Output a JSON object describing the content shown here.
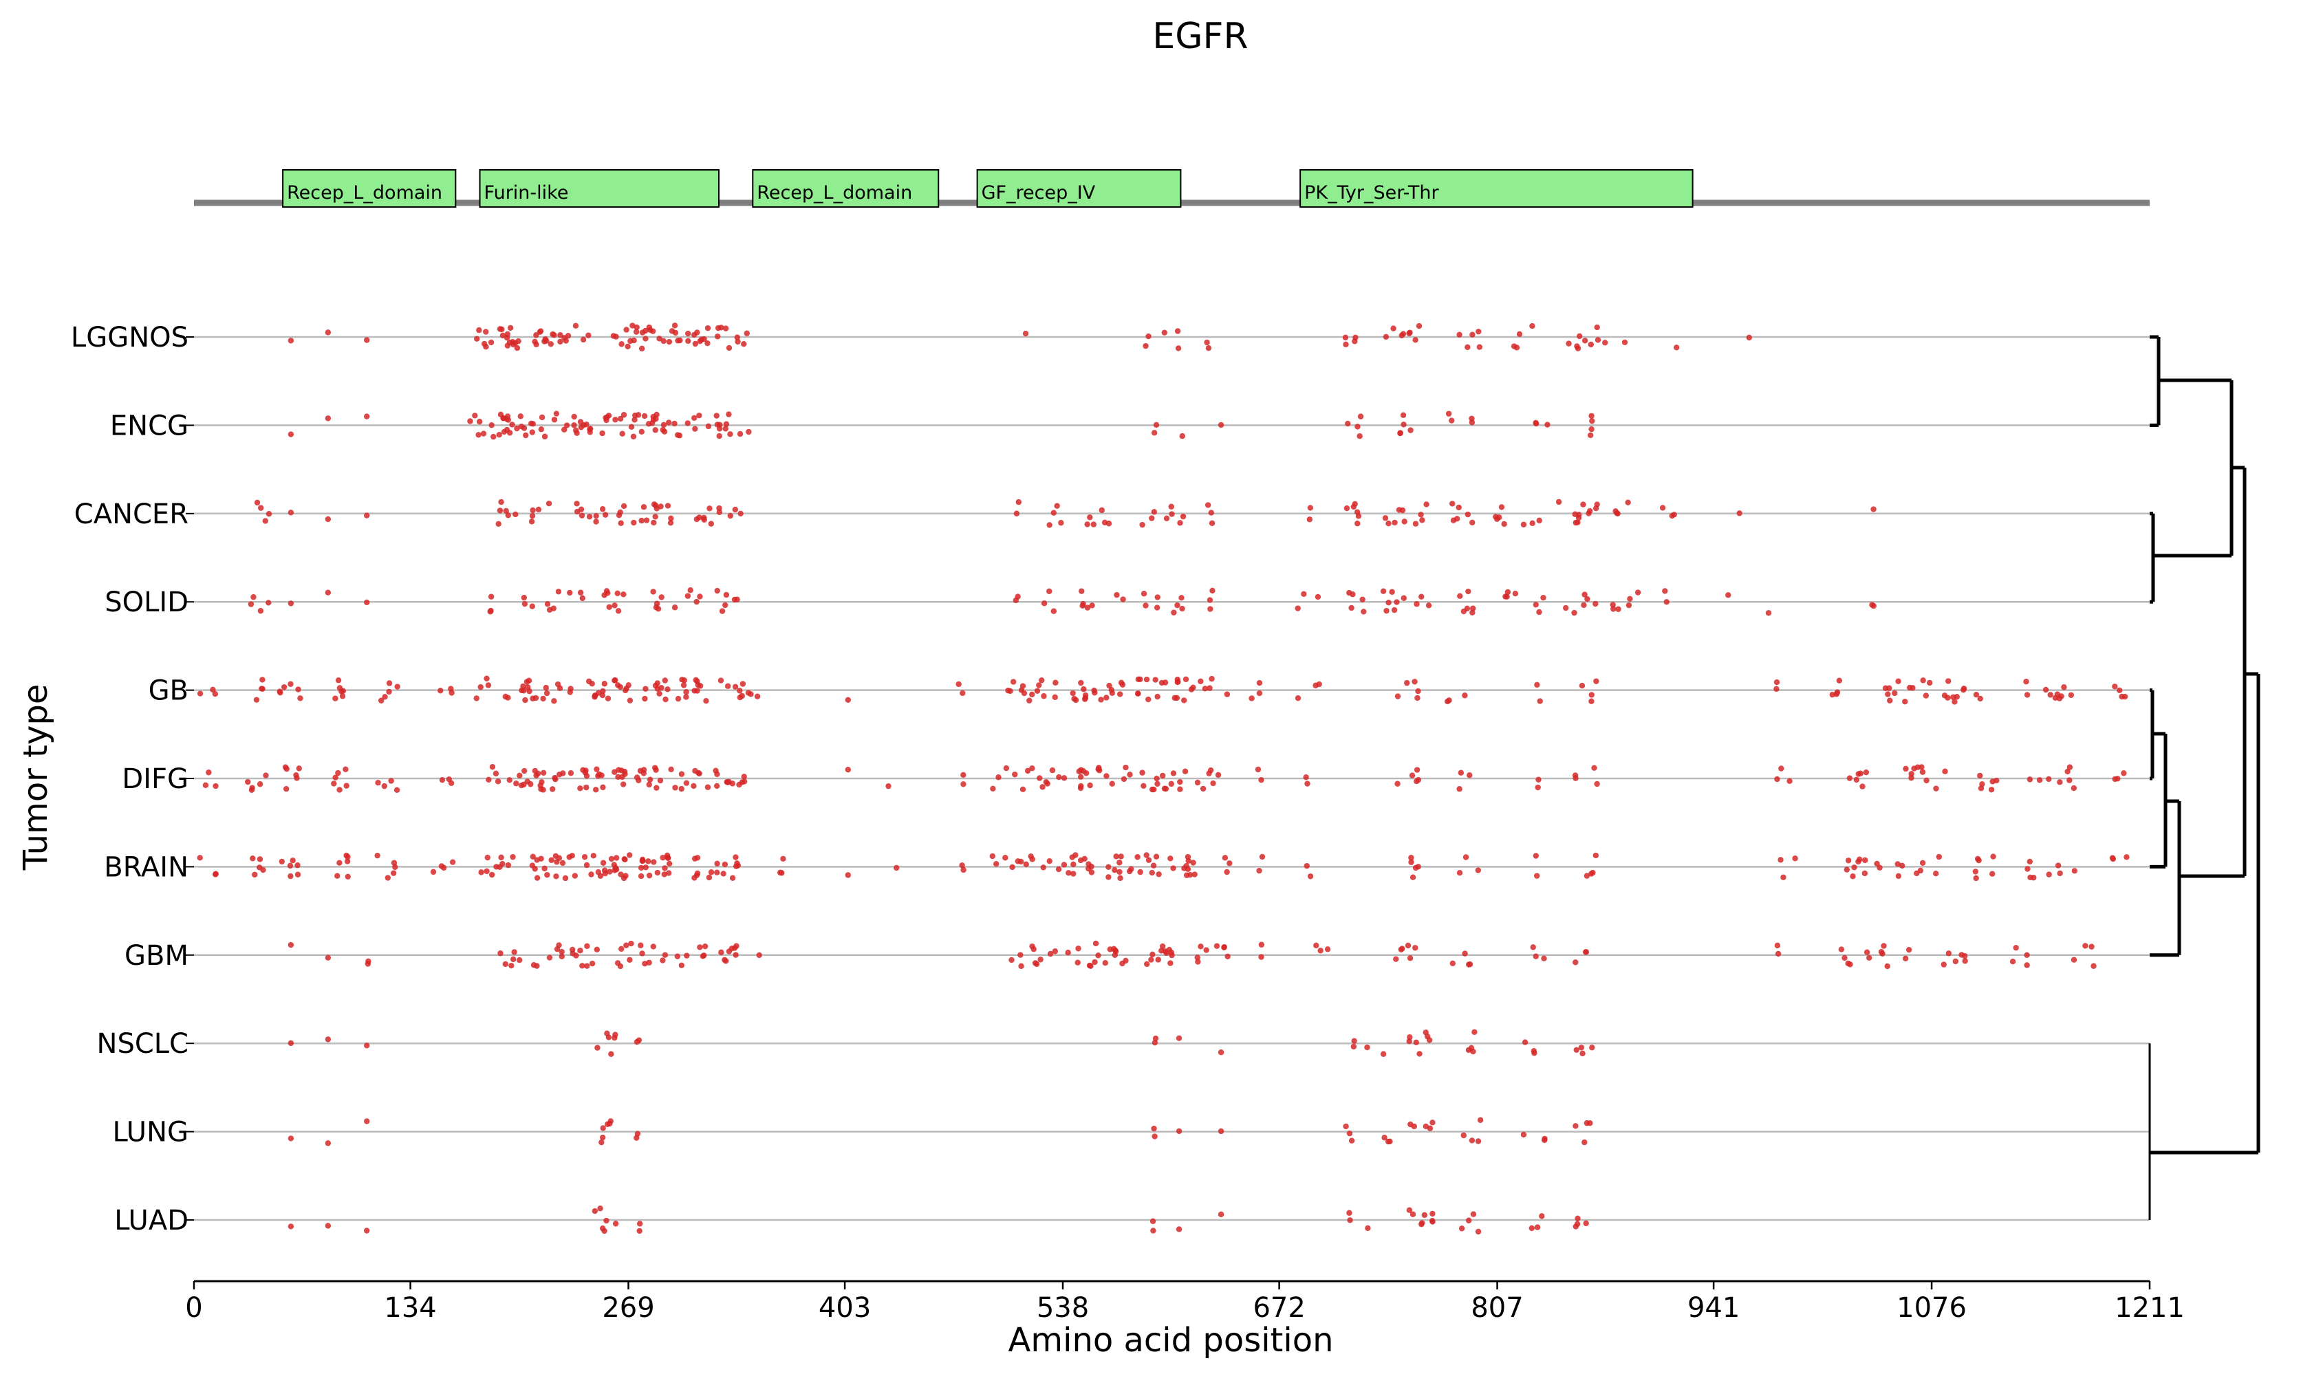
{
  "chart_data": {
    "type": "scatter",
    "title": "EGFR",
    "xlabel": "Amino acid position",
    "ylabel": "Tumor type",
    "xlim": [
      0,
      1211
    ],
    "xticks": [
      {
        "value": 0,
        "label": "0"
      },
      {
        "value": 134,
        "label": "134"
      },
      {
        "value": 269,
        "label": "269"
      },
      {
        "value": 403,
        "label": "403"
      },
      {
        "value": 538,
        "label": "538"
      },
      {
        "value": 672,
        "label": "672"
      },
      {
        "value": 807,
        "label": "807"
      },
      {
        "value": 941,
        "label": "941"
      },
      {
        "value": 1076,
        "label": "1076"
      },
      {
        "value": 1211,
        "label": "1211"
      }
    ],
    "domains": [
      {
        "label": "Recep_L_domain",
        "start": 55,
        "end": 162
      },
      {
        "label": "Furin-like",
        "start": 177,
        "end": 325
      },
      {
        "label": "Recep_L_domain",
        "start": 346,
        "end": 461
      },
      {
        "label": "GF_recep_IV",
        "start": 485,
        "end": 611
      },
      {
        "label": "PK_Tyr_Ser-Thr",
        "start": 685,
        "end": 928
      }
    ],
    "tumor_types": [
      "LGGNOS",
      "ENCG",
      "CANCER",
      "SOLID",
      "GB",
      "DIFG",
      "BRAIN",
      "GBM",
      "NSCLC",
      "LUNG",
      "LUAD"
    ],
    "mutation_clusters": {
      "LGGNOS": [
        [
          60,
          1
        ],
        [
          83,
          1
        ],
        [
          107,
          1
        ],
        [
          185,
          12
        ],
        [
          200,
          10
        ],
        [
          230,
          16
        ],
        [
          268,
          16
        ],
        [
          300,
          16
        ],
        [
          330,
          12
        ],
        [
          515,
          1
        ],
        [
          595,
          3
        ],
        [
          610,
          2
        ],
        [
          628,
          2
        ],
        [
          716,
          4
        ],
        [
          750,
          8
        ],
        [
          790,
          5
        ],
        [
          822,
          4
        ],
        [
          854,
          4
        ],
        [
          868,
          5
        ],
        [
          886,
          1
        ],
        [
          918,
          1
        ],
        [
          963,
          1
        ]
      ],
      "ENCG": [
        [
          60,
          1
        ],
        [
          83,
          1
        ],
        [
          107,
          1
        ],
        [
          185,
          12
        ],
        [
          200,
          14
        ],
        [
          230,
          18
        ],
        [
          268,
          18
        ],
        [
          300,
          16
        ],
        [
          330,
          12
        ],
        [
          595,
          2
        ],
        [
          612,
          1
        ],
        [
          636,
          1
        ],
        [
          716,
          4
        ],
        [
          752,
          5
        ],
        [
          778,
          2
        ],
        [
          790,
          2
        ],
        [
          835,
          3
        ],
        [
          862,
          4
        ]
      ],
      "CANCER": [
        [
          40,
          4
        ],
        [
          60,
          1
        ],
        [
          83,
          1
        ],
        [
          107,
          1
        ],
        [
          195,
          6
        ],
        [
          225,
          8
        ],
        [
          255,
          8
        ],
        [
          275,
          10
        ],
        [
          300,
          8
        ],
        [
          328,
          8
        ],
        [
          510,
          2
        ],
        [
          530,
          4
        ],
        [
          560,
          6
        ],
        [
          598,
          8
        ],
        [
          628,
          3
        ],
        [
          690,
          2
        ],
        [
          720,
          6
        ],
        [
          752,
          10
        ],
        [
          785,
          6
        ],
        [
          810,
          5
        ],
        [
          830,
          3
        ],
        [
          852,
          5
        ],
        [
          864,
          6
        ],
        [
          885,
          4
        ],
        [
          914,
          3
        ],
        [
          957,
          1
        ],
        [
          1040,
          1
        ]
      ],
      "SOLID": [
        [
          40,
          4
        ],
        [
          60,
          1
        ],
        [
          83,
          1
        ],
        [
          107,
          1
        ],
        [
          190,
          3
        ],
        [
          220,
          8
        ],
        [
          255,
          10
        ],
        [
          300,
          10
        ],
        [
          330,
          6
        ],
        [
          510,
          2
        ],
        [
          530,
          3
        ],
        [
          560,
          7
        ],
        [
          598,
          8
        ],
        [
          628,
          3
        ],
        [
          690,
          3
        ],
        [
          722,
          5
        ],
        [
          752,
          10
        ],
        [
          785,
          6
        ],
        [
          812,
          4
        ],
        [
          830,
          3
        ],
        [
          864,
          8
        ],
        [
          888,
          4
        ],
        [
          912,
          2
        ],
        [
          950,
          1
        ],
        [
          975,
          1
        ],
        [
          1040,
          2
        ]
      ],
      "GB": [
        [
          10,
          3
        ],
        [
          40,
          4
        ],
        [
          60,
          6
        ],
        [
          90,
          6
        ],
        [
          120,
          5
        ],
        [
          155,
          3
        ],
        [
          190,
          8
        ],
        [
          220,
          16
        ],
        [
          255,
          18
        ],
        [
          290,
          16
        ],
        [
          325,
          14
        ],
        [
          350,
          3
        ],
        [
          405,
          1
        ],
        [
          475,
          2
        ],
        [
          520,
          14
        ],
        [
          560,
          18
        ],
        [
          600,
          16
        ],
        [
          628,
          8
        ],
        [
          660,
          3
        ],
        [
          690,
          3
        ],
        [
          752,
          5
        ],
        [
          782,
          3
        ],
        [
          832,
          2
        ],
        [
          862,
          4
        ],
        [
          980,
          2
        ],
        [
          1020,
          4
        ],
        [
          1060,
          12
        ],
        [
          1100,
          10
        ],
        [
          1150,
          10
        ],
        [
          1190,
          4
        ]
      ],
      "DIFG": [
        [
          10,
          3
        ],
        [
          40,
          5
        ],
        [
          60,
          6
        ],
        [
          90,
          6
        ],
        [
          120,
          4
        ],
        [
          155,
          3
        ],
        [
          190,
          8
        ],
        [
          220,
          18
        ],
        [
          255,
          20
        ],
        [
          290,
          16
        ],
        [
          325,
          16
        ],
        [
          405,
          1
        ],
        [
          430,
          1
        ],
        [
          475,
          2
        ],
        [
          510,
          8
        ],
        [
          540,
          10
        ],
        [
          565,
          12
        ],
        [
          600,
          14
        ],
        [
          628,
          6
        ],
        [
          660,
          2
        ],
        [
          690,
          2
        ],
        [
          752,
          5
        ],
        [
          790,
          3
        ],
        [
          832,
          2
        ],
        [
          862,
          4
        ],
        [
          985,
          3
        ],
        [
          1030,
          6
        ],
        [
          1070,
          10
        ],
        [
          1110,
          6
        ],
        [
          1150,
          8
        ],
        [
          1190,
          3
        ]
      ],
      "BRAIN": [
        [
          10,
          3
        ],
        [
          40,
          5
        ],
        [
          60,
          6
        ],
        [
          90,
          6
        ],
        [
          120,
          5
        ],
        [
          155,
          4
        ],
        [
          190,
          10
        ],
        [
          220,
          18
        ],
        [
          255,
          22
        ],
        [
          290,
          18
        ],
        [
          325,
          16
        ],
        [
          360,
          3
        ],
        [
          405,
          1
        ],
        [
          435,
          1
        ],
        [
          475,
          2
        ],
        [
          510,
          10
        ],
        [
          540,
          12
        ],
        [
          565,
          12
        ],
        [
          600,
          14
        ],
        [
          628,
          8
        ],
        [
          660,
          2
        ],
        [
          690,
          2
        ],
        [
          752,
          5
        ],
        [
          790,
          3
        ],
        [
          832,
          2
        ],
        [
          862,
          4
        ],
        [
          985,
          3
        ],
        [
          1030,
          10
        ],
        [
          1070,
          8
        ],
        [
          1110,
          6
        ],
        [
          1150,
          8
        ],
        [
          1190,
          3
        ]
      ],
      "GBM": [
        [
          60,
          1
        ],
        [
          83,
          1
        ],
        [
          107,
          2
        ],
        [
          195,
          6
        ],
        [
          225,
          10
        ],
        [
          255,
          12
        ],
        [
          290,
          10
        ],
        [
          320,
          12
        ],
        [
          350,
          1
        ],
        [
          520,
          10
        ],
        [
          555,
          14
        ],
        [
          590,
          14
        ],
        [
          625,
          8
        ],
        [
          660,
          2
        ],
        [
          700,
          3
        ],
        [
          750,
          6
        ],
        [
          785,
          4
        ],
        [
          830,
          3
        ],
        [
          862,
          3
        ],
        [
          980,
          2
        ],
        [
          1020,
          4
        ],
        [
          1050,
          8
        ],
        [
          1090,
          6
        ],
        [
          1130,
          4
        ],
        [
          1170,
          4
        ]
      ],
      "NSCLC": [
        [
          60,
          1
        ],
        [
          83,
          1
        ],
        [
          107,
          1
        ],
        [
          255,
          6
        ],
        [
          275,
          2
        ],
        [
          595,
          2
        ],
        [
          610,
          1
        ],
        [
          636,
          1
        ],
        [
          720,
          3
        ],
        [
          752,
          8
        ],
        [
          790,
          4
        ],
        [
          830,
          3
        ],
        [
          862,
          4
        ]
      ],
      "LUNG": [
        [
          60,
          1
        ],
        [
          83,
          1
        ],
        [
          107,
          1
        ],
        [
          255,
          6
        ],
        [
          275,
          2
        ],
        [
          595,
          2
        ],
        [
          610,
          1
        ],
        [
          636,
          1
        ],
        [
          720,
          3
        ],
        [
          752,
          8
        ],
        [
          790,
          4
        ],
        [
          830,
          3
        ],
        [
          862,
          4
        ]
      ],
      "LUAD": [
        [
          60,
          1
        ],
        [
          83,
          1
        ],
        [
          107,
          1
        ],
        [
          255,
          6
        ],
        [
          275,
          2
        ],
        [
          595,
          2
        ],
        [
          610,
          1
        ],
        [
          636,
          1
        ],
        [
          720,
          3
        ],
        [
          752,
          8
        ],
        [
          790,
          4
        ],
        [
          830,
          3
        ],
        [
          862,
          4
        ]
      ]
    },
    "dendrogram": {
      "description": "hierarchical clustering of tumor types",
      "links": [
        {
          "children": [
            "LGGNOS",
            "ENCG"
          ],
          "height": 1
        },
        {
          "children": [
            "CANCER",
            "SOLID"
          ],
          "height": 0.5
        },
        {
          "children": [
            "LGGNOS+ENCG",
            "CANCER+SOLID"
          ],
          "height": 10
        },
        {
          "children": [
            "GB",
            "DIFG"
          ],
          "height": 2
        },
        {
          "children": [
            "GB+DIFG",
            "BRAIN"
          ],
          "height": 3.5
        },
        {
          "children": [
            "GB+DIFG+BRAIN",
            "GBM"
          ],
          "height": 3.5
        },
        {
          "children": [
            "LGGNOS+ENCG+CANCER+SOLID",
            "GB+DIFG+BRAIN+GBM"
          ],
          "height": 12
        },
        {
          "children": [
            "main",
            "NSCLC+LUNG+LUAD"
          ],
          "height": 16
        }
      ]
    },
    "colors": {
      "points": "#d62728",
      "domains": "#90ee90",
      "backbone": "#808080",
      "rows": "#bbbbbb"
    }
  }
}
